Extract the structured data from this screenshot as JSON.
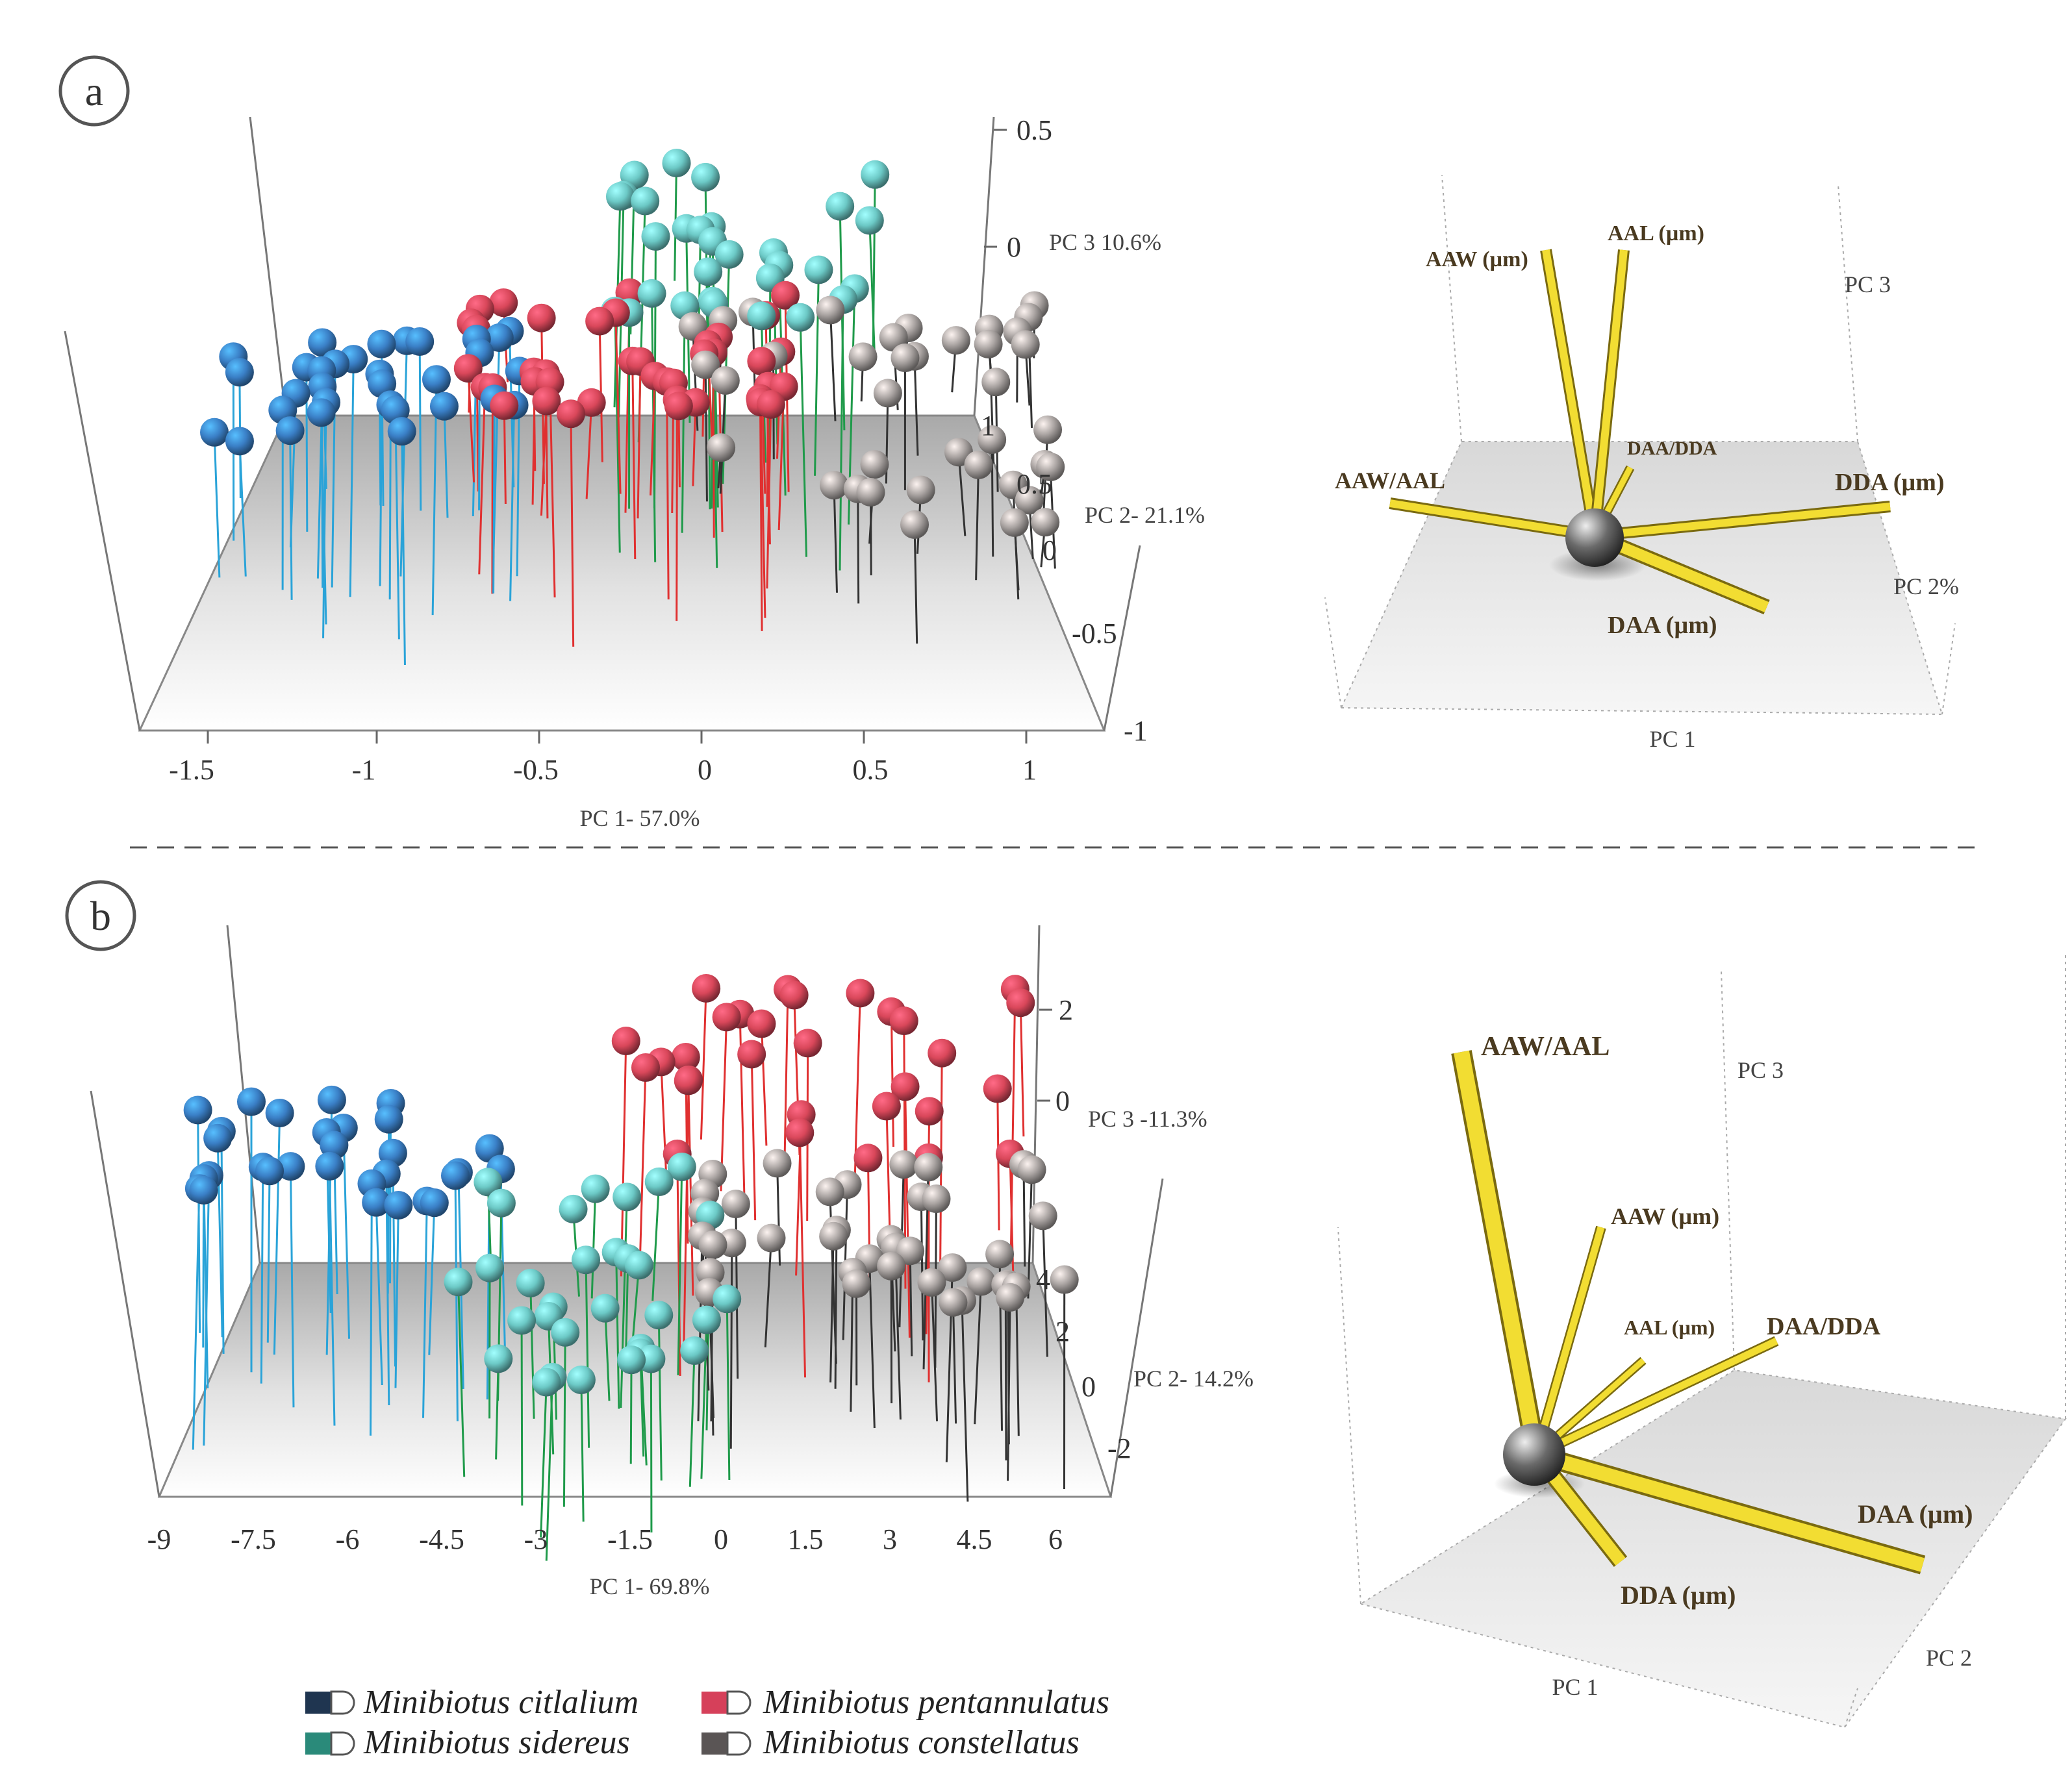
{
  "chart_data": [
    {
      "type": "scatter3d",
      "panel": "a",
      "x_ticks": [
        "-1.5",
        "-1",
        "-0.5",
        "0",
        "0.5",
        "1"
      ],
      "y_ticks": [
        "1",
        "0.5",
        "0",
        "-0.5",
        "-1"
      ],
      "z_ticks": [
        "0.5",
        "0"
      ],
      "xlabel": "PC 1- 57.0%",
      "ylabel": "PC 2- 21.1%",
      "zlabel": "PC 3 10.6%",
      "series": [
        {
          "name": "Minibiotus citlalium",
          "color": "#3a7fc6",
          "n": 32
        },
        {
          "name": "Minibiotus pentannulatus",
          "color": "#d9475a",
          "n": 40
        },
        {
          "name": "Minibiotus sidereus",
          "color": "#6cc9c6",
          "n": 30
        },
        {
          "name": "Minibiotus constellatus",
          "color": "#a8a2a0",
          "n": 38
        }
      ]
    },
    {
      "type": "loadings3d",
      "panel": "a",
      "axes": [
        "PC 1",
        "PC 2%",
        "PC 3"
      ],
      "loadings": [
        "AAW (µm)",
        "AAL (µm)",
        "DAA/DDA",
        "AAW/AAL",
        "DDA (µm)",
        "DAA (µm)"
      ]
    },
    {
      "type": "scatter3d",
      "panel": "b",
      "x_ticks": [
        "-9",
        "-7.5",
        "-6",
        "-4.5",
        "-3",
        "-1.5",
        "0",
        "1.5",
        "3",
        "4.5",
        "6"
      ],
      "y_ticks": [
        "4",
        "2",
        "0",
        "-2"
      ],
      "z_ticks": [
        "2",
        "0"
      ],
      "xlabel": "PC 1- 69.8%",
      "ylabel": "PC 2- 14.2%",
      "zlabel": "PC 3 -11.3%",
      "series": [
        {
          "name": "Minibiotus citlalium",
          "color": "#3a7fc6",
          "n": 30
        },
        {
          "name": "Minibiotus sidereus",
          "color": "#6cc9c6",
          "n": 32
        },
        {
          "name": "Minibiotus pentannulatus",
          "color": "#d9475a",
          "n": 30
        },
        {
          "name": "Minibiotus constellatus",
          "color": "#a8a2a0",
          "n": 40
        }
      ]
    },
    {
      "type": "loadings3d",
      "panel": "b",
      "axes": [
        "PC 1",
        "PC 2",
        "PC 3"
      ],
      "loadings": [
        "AAW/AAL",
        "AAW (µm)",
        "AAL (µm)",
        "DAA/DDA",
        "DAA (µm)",
        "DDA (µm)"
      ]
    }
  ],
  "panels": {
    "a": "a",
    "b": "b"
  },
  "legend": [
    {
      "label": "Minibiotus citlalium",
      "color": "#1f3550"
    },
    {
      "label": "Minibiotus pentannulatus",
      "color": "#d6405a"
    },
    {
      "label": "Minibiotus sidereus",
      "color": "#2a8a7a"
    },
    {
      "label": "Minibiotus constellatus",
      "color": "#5a5555"
    }
  ]
}
